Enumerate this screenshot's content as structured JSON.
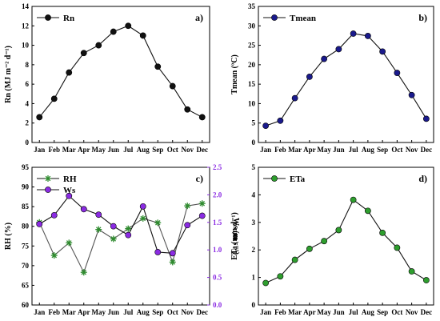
{
  "chart_data": [
    {
      "panel_label": "a)",
      "type": "line",
      "categories": [
        "Jan",
        "Feb",
        "Mar",
        "Apr",
        "May",
        "Jun",
        "Jul",
        "Aug",
        "Sep",
        "Oct",
        "Nov",
        "Dec"
      ],
      "series": [
        {
          "name": "Rn",
          "values": [
            2.6,
            4.5,
            7.2,
            9.2,
            10.0,
            11.4,
            12.0,
            11.0,
            7.8,
            5.8,
            3.4,
            2.6
          ],
          "color": "#111111",
          "marker": "circle"
        }
      ],
      "ylabel": "Rn (MJ m⁻² d⁻¹)",
      "ylim": [
        0,
        14
      ],
      "yticks": [
        0,
        2,
        4,
        6,
        8,
        10,
        12,
        14
      ],
      "legend_position": "top-left"
    },
    {
      "panel_label": "b)",
      "type": "line",
      "categories": [
        "Jan",
        "Feb",
        "Mar",
        "Apr",
        "May",
        "Jun",
        "Jul",
        "Aug",
        "Sep",
        "Oct",
        "Nov",
        "Dec"
      ],
      "series": [
        {
          "name": "Tmean",
          "values": [
            4.3,
            5.6,
            11.4,
            16.9,
            21.5,
            24.0,
            28.0,
            27.4,
            23.4,
            17.9,
            12.2,
            6.1
          ],
          "color": "#1a1a8c",
          "marker": "circle"
        }
      ],
      "ylabel": "Tmean (ºC)",
      "ylim": [
        0,
        35
      ],
      "yticks": [
        0,
        5,
        10,
        15,
        20,
        25,
        30,
        35
      ],
      "legend_position": "top-left"
    },
    {
      "panel_label": "c)",
      "type": "line",
      "categories": [
        "Jan",
        "Feb",
        "Mar",
        "Apr",
        "May",
        "Jun",
        "Jul",
        "Aug",
        "Sep",
        "Oct",
        "Nov",
        "Dec"
      ],
      "series": [
        {
          "name": "RH",
          "axis": "left",
          "values": [
            81,
            72.6,
            75.8,
            68.3,
            79.2,
            76.8,
            79.4,
            82.0,
            80.9,
            70.9,
            85.2,
            85.8
          ],
          "color": "#2e8b2e",
          "marker": "asterisk"
        },
        {
          "name": "Ws",
          "axis": "right",
          "values": [
            1.47,
            1.63,
            1.98,
            1.74,
            1.64,
            1.43,
            1.27,
            1.79,
            0.96,
            0.94,
            1.45,
            1.62
          ],
          "color": "#8a2be2",
          "marker": "circle"
        }
      ],
      "ylabel": "RH (%)",
      "ylim": [
        60,
        95
      ],
      "yticks": [
        60,
        65,
        70,
        75,
        80,
        85,
        90,
        95
      ],
      "y2label": "Ws (m s⁻¹)",
      "y2lim": [
        0,
        2.5
      ],
      "y2ticks": [
        "0.0",
        "0.5",
        "1.0",
        "1.5",
        "2.0",
        "2.5"
      ],
      "y2color": "#8a2be2",
      "legend_position": "top-left"
    },
    {
      "panel_label": "d)",
      "type": "line",
      "categories": [
        "Jan",
        "Feb",
        "Mar",
        "Apr",
        "May",
        "Jun",
        "Jul",
        "Aug",
        "Sep",
        "Oct",
        "Nov",
        "Dec"
      ],
      "series": [
        {
          "name": "ETa",
          "values": [
            0.8,
            1.04,
            1.64,
            2.04,
            2.32,
            2.72,
            3.82,
            3.42,
            2.62,
            2.08,
            1.22,
            0.9
          ],
          "color": "#2e9e2e",
          "marker": "circle"
        }
      ],
      "ylabel": "ETa (mm d⁻¹)",
      "ylim": [
        0,
        5
      ],
      "yticks": [
        0,
        1,
        2,
        3,
        4,
        5
      ],
      "legend_position": "top-left"
    }
  ]
}
